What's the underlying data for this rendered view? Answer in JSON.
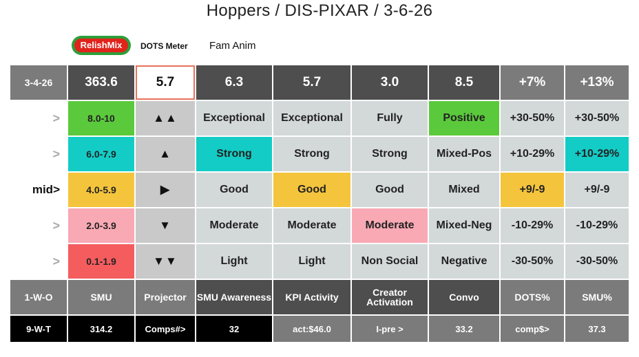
{
  "title": "Hoppers / DIS-PIXAR / 3-6-26",
  "logo_text": "RelishMix",
  "dots_meter_label": "DOTS Meter",
  "fam_label": "Fam Anim",
  "top_row": [
    "3-4-26",
    "363.6",
    "5.7",
    "6.3",
    "5.7",
    "3.0",
    "8.5",
    "+7%",
    "+13%"
  ],
  "levels": [
    {
      "label": ">",
      "range": "8.0-10",
      "arrow": "▲▲",
      "c3": "Exceptional",
      "c4": "Exceptional",
      "c5": "Fully",
      "c6": "Positive",
      "c7": "+30-50%",
      "c8": "+30-50%"
    },
    {
      "label": ">",
      "range": "6.0-7.9",
      "arrow": "▲",
      "c3": "Strong",
      "c4": "Strong",
      "c5": "Strong",
      "c6": "Mixed-Pos",
      "c7": "+10-29%",
      "c8": "+10-29%"
    },
    {
      "label": "mid>",
      "range": "4.0-5.9",
      "arrow": "▶",
      "c3": "Good",
      "c4": "Good",
      "c5": "Good",
      "c6": "Mixed",
      "c7": "+9/-9",
      "c8": "+9/-9"
    },
    {
      "label": ">",
      "range": "2.0-3.9",
      "arrow": "▼",
      "c3": "Moderate",
      "c4": "Moderate",
      "c5": "Moderate",
      "c6": "Mixed-Neg",
      "c7": "-10-29%",
      "c8": "-10-29%"
    },
    {
      "label": ">",
      "range": "0.1-1.9",
      "arrow": "▼▼",
      "c3": "Light",
      "c4": "Light",
      "c5": "Non Social",
      "c6": "Negative",
      "c7": "-30-50%",
      "c8": "-30-50%"
    }
  ],
  "header_row": [
    "1-W-O",
    "SMU",
    "Projector",
    "SMU Awareness",
    "KPI Activity",
    "Creator Activation",
    "Convo",
    "DOTS%",
    "SMU%"
  ],
  "bottom_row": [
    "9-W-T",
    "314.2",
    "Comps#>",
    "32",
    "act:$46.0",
    "I-pre >",
    "33.2",
    "comp$>",
    "37.3"
  ],
  "colors": {
    "dark_gray": "#4e4e4e",
    "mid_gray": "#7b7b7b",
    "light_gray": "#d3d8d9",
    "black": "#000000",
    "green": "#5bc93c",
    "cyan": "#13ccc6",
    "yellow": "#f4c43d",
    "pink": "#f8a9b4",
    "red": "#f45c5e",
    "highlight_border": "#e8725c"
  }
}
